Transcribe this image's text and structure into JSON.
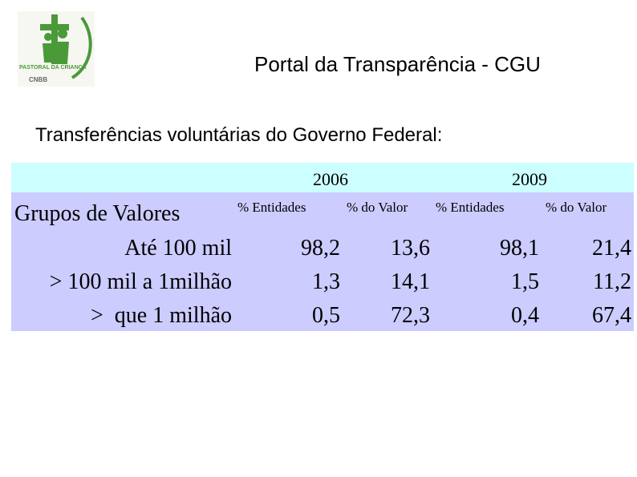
{
  "header": {
    "title": "Portal da Transparência - CGU",
    "subtitle": "Transferências voluntárias do Governo Federal:"
  },
  "logo": {
    "name": "PASTORAL DA CRIANÇA",
    "org": "CNBB"
  },
  "table": {
    "years": [
      "2006",
      "2009"
    ],
    "columns": [
      "Grupos de Valores",
      "% Entidades",
      "% do Valor",
      "% Entidades",
      "% do Valor"
    ],
    "rows": [
      [
        "Até 100 mil",
        "98,2",
        "13,6",
        "98,1",
        "21,4"
      ],
      [
        "> 100 mil a 1milhão",
        "1,3",
        "14,1",
        "1,5",
        "11,2"
      ],
      [
        ">  que 1 milhão",
        "0,5",
        "72,3",
        "0,4",
        "67,4"
      ]
    ]
  }
}
